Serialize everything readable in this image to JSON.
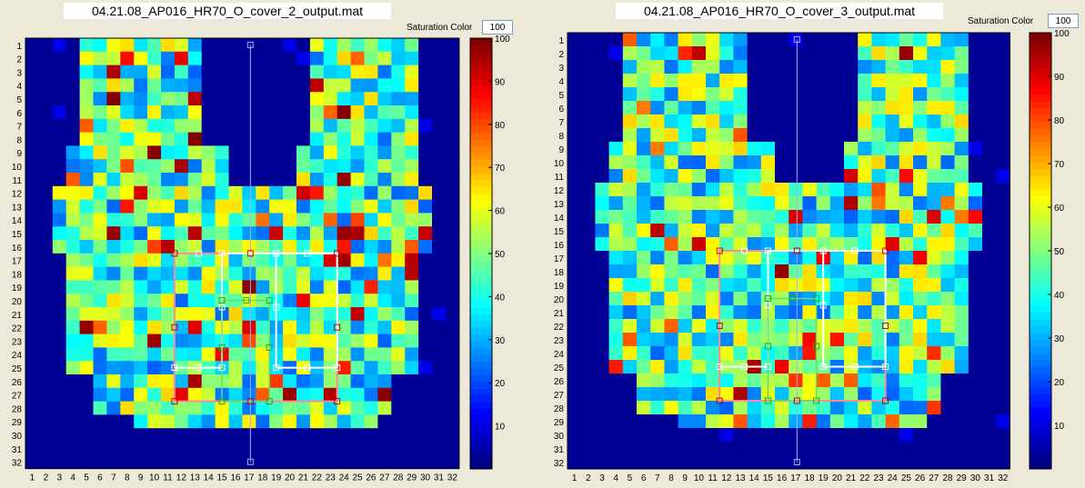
{
  "panels": [
    {
      "title": "04.21.08_AP016_HR70_O_cover_2_output.mat",
      "saturation_label": "Saturation Color",
      "saturation_value": "100",
      "seed": 1
    },
    {
      "title": "04.21.08_AP016_HR70_O_cover_3_output.mat",
      "saturation_label": "Saturation Color",
      "saturation_value": "100",
      "seed": 2
    }
  ],
  "grid": {
    "rows": [
      "1",
      "2",
      "3",
      "4",
      "5",
      "6",
      "7",
      "8",
      "9",
      "10",
      "11",
      "12",
      "13",
      "14",
      "15",
      "16",
      "17",
      "18",
      "19",
      "20",
      "21",
      "22",
      "23",
      "24",
      "25",
      "26",
      "27",
      "28",
      "29",
      "30",
      "31",
      "32"
    ],
    "cols": [
      "1",
      "2",
      "3",
      "4",
      "5",
      "6",
      "7",
      "8",
      "9",
      "10",
      "11",
      "12",
      "13",
      "14",
      "15",
      "16",
      "17",
      "18",
      "19",
      "20",
      "21",
      "22",
      "23",
      "24",
      "25",
      "26",
      "27",
      "28",
      "29",
      "30",
      "31",
      "32"
    ]
  },
  "colorbar": {
    "ticks": [
      "10",
      "20",
      "30",
      "40",
      "50",
      "60",
      "70",
      "80",
      "90",
      "100"
    ],
    "min": 0,
    "max": 100,
    "colormap": "jet"
  }
}
